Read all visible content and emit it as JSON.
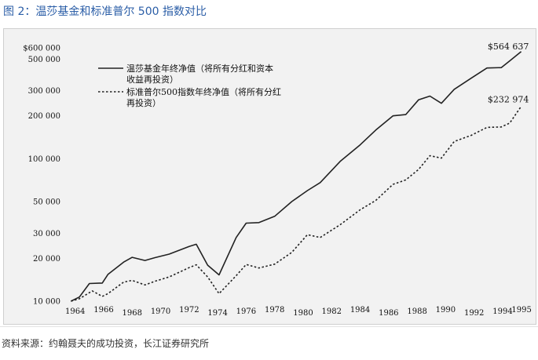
{
  "figure_title": "图 2：温莎基金和标准普尔 500 指数对比",
  "source_note": "资料来源：约翰聂夫的成功投资，长江证券研究所",
  "chart_data": {
    "type": "line",
    "scale": "log",
    "ylim": [
      10000,
      600000
    ],
    "y_ticks": [
      {
        "value": 10000,
        "label": "10 000"
      },
      {
        "value": 20000,
        "label": "20 000"
      },
      {
        "value": 30000,
        "label": "30 000"
      },
      {
        "value": 50000,
        "label": "50 000"
      },
      {
        "value": 100000,
        "label": "100 000"
      },
      {
        "value": 200000,
        "label": "200 000"
      },
      {
        "value": 300000,
        "label": "300 000"
      },
      {
        "value": 500000,
        "label": "500 000"
      },
      {
        "value": 600000,
        "label": "$600 000"
      }
    ],
    "x_ticks": [
      {
        "value": 1964,
        "label": "1964"
      },
      {
        "value": 1966,
        "label": "1966"
      },
      {
        "value": 1968,
        "label": "1968"
      },
      {
        "value": 1970,
        "label": "1970"
      },
      {
        "value": 1972,
        "label": "1972"
      },
      {
        "value": 1974,
        "label": "1974"
      },
      {
        "value": 1976,
        "label": "1976"
      },
      {
        "value": 1978,
        "label": "1978"
      },
      {
        "value": 1980,
        "label": "1980"
      },
      {
        "value": 1982,
        "label": "1982"
      },
      {
        "value": 1984,
        "label": "1984"
      },
      {
        "value": 1986,
        "label": "1986"
      },
      {
        "value": 1988,
        "label": "1988"
      },
      {
        "value": 1990,
        "label": "1990"
      },
      {
        "value": 1992,
        "label": "1992"
      },
      {
        "value": 1994,
        "label": "1994"
      },
      {
        "value": 1995,
        "label": "1995"
      }
    ],
    "series": [
      {
        "name_line1": "温莎基金年终净值（将所有分红和资本",
        "name_line2": "收益再投资）",
        "style": "solid",
        "color": "#222222",
        "points": [
          [
            1963.7,
            10000
          ],
          [
            1964.3,
            10700
          ],
          [
            1965.0,
            13300
          ],
          [
            1965.9,
            13400
          ],
          [
            1966.3,
            15400
          ],
          [
            1967.4,
            18800
          ],
          [
            1968.0,
            20300
          ],
          [
            1968.9,
            19300
          ],
          [
            1969.6,
            20200
          ],
          [
            1970.6,
            21400
          ],
          [
            1972.0,
            24200
          ],
          [
            1972.5,
            25100
          ],
          [
            1973.3,
            17900
          ],
          [
            1974.1,
            15300
          ],
          [
            1975.3,
            28000
          ],
          [
            1976.0,
            35300
          ],
          [
            1976.9,
            35600
          ],
          [
            1978.0,
            39400
          ],
          [
            1979.2,
            50000
          ],
          [
            1980.3,
            59700
          ],
          [
            1981.2,
            68000
          ],
          [
            1982.6,
            95700
          ],
          [
            1984.0,
            125000
          ],
          [
            1985.1,
            159000
          ],
          [
            1986.3,
            200000
          ],
          [
            1987.2,
            204000
          ],
          [
            1988.1,
            259000
          ],
          [
            1988.9,
            275000
          ],
          [
            1989.7,
            245000
          ],
          [
            1990.6,
            307000
          ],
          [
            1991.8,
            368000
          ],
          [
            1992.9,
            433000
          ],
          [
            1993.9,
            436000
          ],
          [
            1994.5,
            486000
          ],
          [
            1995.3,
            564637
          ]
        ]
      },
      {
        "name_line1": "标准普尔500指数年终净值（将所有分红",
        "name_line2": "再投资）",
        "style": "dashed",
        "color": "#222222",
        "points": [
          [
            1963.7,
            10000
          ],
          [
            1964.3,
            10400
          ],
          [
            1965.2,
            11800
          ],
          [
            1965.9,
            10800
          ],
          [
            1966.3,
            11300
          ],
          [
            1967.4,
            13600
          ],
          [
            1968.0,
            14000
          ],
          [
            1968.9,
            13000
          ],
          [
            1969.6,
            13800
          ],
          [
            1970.6,
            14800
          ],
          [
            1972.0,
            17200
          ],
          [
            1972.5,
            18000
          ],
          [
            1973.3,
            14800
          ],
          [
            1974.1,
            11300
          ],
          [
            1975.3,
            15100
          ],
          [
            1976.0,
            18100
          ],
          [
            1976.9,
            17100
          ],
          [
            1978.0,
            18200
          ],
          [
            1979.2,
            22000
          ],
          [
            1980.3,
            29300
          ],
          [
            1981.2,
            28000
          ],
          [
            1982.6,
            34400
          ],
          [
            1984.0,
            43800
          ],
          [
            1985.1,
            51000
          ],
          [
            1986.3,
            66000
          ],
          [
            1987.2,
            71000
          ],
          [
            1988.1,
            84000
          ],
          [
            1988.9,
            105000
          ],
          [
            1989.7,
            101000
          ],
          [
            1990.6,
            132000
          ],
          [
            1991.8,
            146000
          ],
          [
            1992.9,
            166000
          ],
          [
            1993.9,
            167000
          ],
          [
            1994.5,
            178000
          ],
          [
            1995.3,
            232974
          ]
        ]
      }
    ],
    "annotations": [
      {
        "label": "$564 637",
        "x": 1993.5,
        "y": 564637
      },
      {
        "label": "$232 974",
        "x": 1993.5,
        "y": 232974
      }
    ]
  }
}
